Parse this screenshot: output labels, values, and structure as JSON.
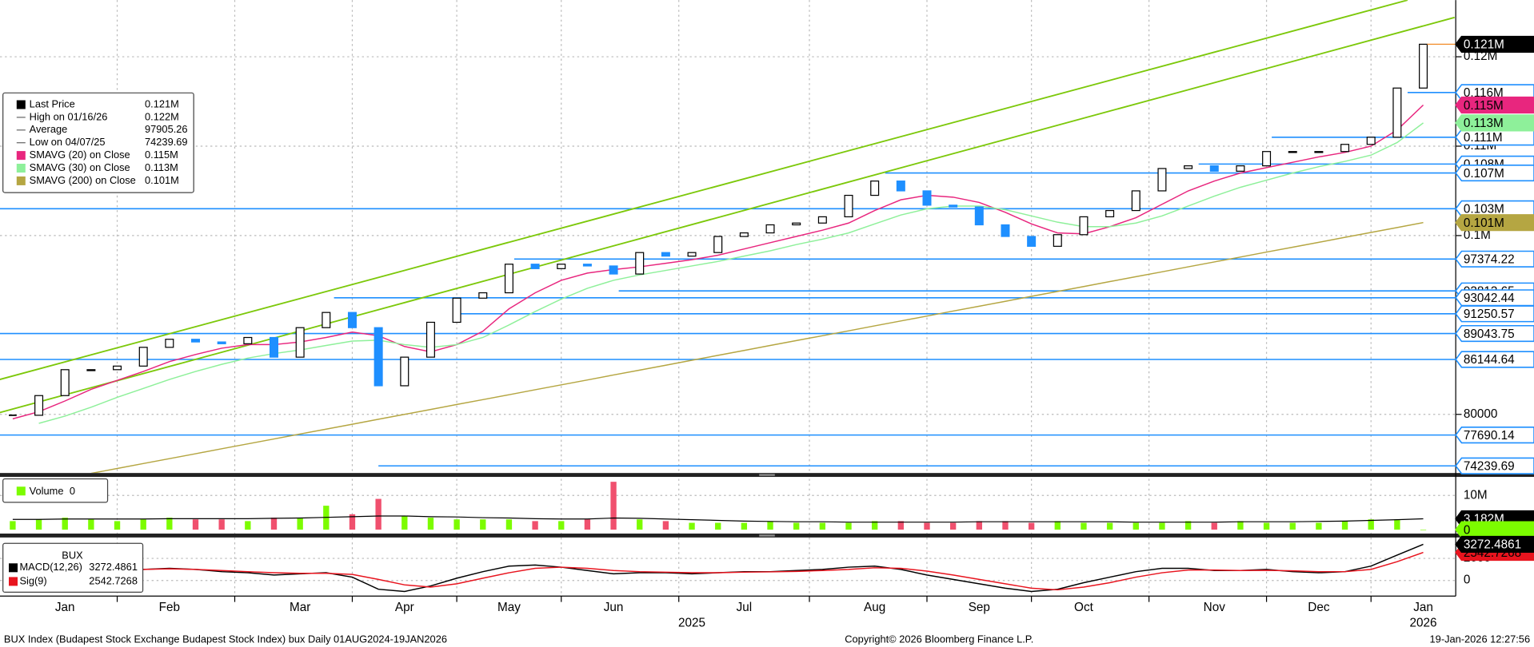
{
  "chart_data": {
    "type": "candlestick",
    "categories": [
      null,
      null,
      "Jan",
      null,
      null,
      null,
      "Feb",
      null,
      null,
      null,
      null,
      "Mar",
      null,
      null,
      null,
      "Apr",
      null,
      null,
      null,
      "May",
      null,
      null,
      null,
      "Jun",
      null,
      null,
      null,
      null,
      "Jul",
      null,
      null,
      null,
      null,
      "Aug",
      null,
      null,
      null,
      "Sep",
      null,
      null,
      null,
      "Oct",
      null,
      null,
      null,
      null,
      "Nov",
      null,
      null,
      null,
      "Dec",
      null,
      null,
      null,
      "Jan"
    ],
    "year_labels": [
      null,
      null,
      null,
      null,
      null,
      null,
      null,
      null,
      null,
      null,
      null,
      null,
      null,
      null,
      null,
      null,
      null,
      null,
      null,
      null,
      null,
      null,
      null,
      null,
      null,
      null,
      "2025",
      null,
      null,
      null,
      null,
      null,
      null,
      null,
      null,
      null,
      null,
      null,
      null,
      null,
      null,
      null,
      null,
      null,
      null,
      null,
      null,
      null,
      null,
      null,
      null,
      null,
      null,
      null,
      "2026"
    ],
    "price": {
      "name": "Last Price",
      "up_color": "#ffffff",
      "down_color": "#1e8fff",
      "values": [
        79900,
        82100,
        85000,
        85000,
        85400,
        87500,
        88400,
        88100,
        87900,
        88600,
        86400,
        89700,
        91400,
        89700,
        83200,
        86400,
        90300,
        93000,
        93600,
        96800,
        96300,
        96800,
        96600,
        95700,
        98100,
        97700,
        98100,
        99900,
        100300,
        101200,
        101400,
        102100,
        104500,
        106100,
        105000,
        103400,
        103200,
        101200,
        99900,
        98800,
        100100,
        102100,
        102800,
        105000,
        107500,
        107800,
        107200,
        107800,
        109400,
        109400,
        109400,
        110200,
        111000,
        116500,
        121400
      ]
    },
    "ylim": [
      73443,
      126339
    ],
    "yticks": [
      80000,
      {
        "value": 100000,
        "label": "0.1M"
      },
      {
        "value": 110000,
        "label": "0.11M"
      },
      {
        "value": 120000,
        "label": "0.12M"
      }
    ],
    "grid": true,
    "moving_averages": [
      {
        "name": "SMAVG (20)  on Close",
        "color": "#e8267e",
        "values": [
          79500,
          80300,
          81500,
          82800,
          83800,
          84800,
          85900,
          86700,
          87400,
          87800,
          87800,
          88100,
          88600,
          89200,
          88800,
          87600,
          87000,
          87800,
          89300,
          91800,
          93600,
          95000,
          95800,
          96200,
          96500,
          96900,
          97300,
          97800,
          98500,
          99200,
          99900,
          100600,
          101400,
          102800,
          104000,
          104500,
          104300,
          103700,
          102600,
          101300,
          100300,
          100200,
          101000,
          102000,
          103500,
          105000,
          106100,
          107000,
          107600,
          108200,
          108800,
          109300,
          110000,
          111800,
          114600
        ]
      },
      {
        "name": "SMAVG (30)  on Close",
        "color": "#8ef09a",
        "values": [
          null,
          79000,
          79800,
          80800,
          81900,
          82900,
          83900,
          84800,
          85600,
          86300,
          86800,
          87200,
          87700,
          88200,
          88300,
          87800,
          87500,
          87800,
          88600,
          90000,
          91500,
          92900,
          94100,
          95000,
          95600,
          96100,
          96600,
          97100,
          97700,
          98300,
          99000,
          99600,
          100300,
          101300,
          102300,
          103000,
          103300,
          103300,
          102900,
          102200,
          101500,
          101000,
          101000,
          101400,
          102200,
          103300,
          104400,
          105400,
          106200,
          107000,
          107700,
          108300,
          109000,
          110400,
          112600
        ]
      },
      {
        "name": "SMAVG (200)  on Close",
        "color": "#b5a642",
        "values": [
          null,
          null,
          null,
          73400,
          73950,
          74500,
          75050,
          75600,
          76150,
          76700,
          77250,
          77800,
          78350,
          78900,
          79450,
          80000,
          80550,
          81100,
          81650,
          82200,
          82750,
          83300,
          83850,
          84400,
          84950,
          85500,
          86050,
          86600,
          87150,
          87700,
          88250,
          88800,
          89350,
          89900,
          90450,
          91000,
          91550,
          92100,
          92650,
          93200,
          93750,
          94300,
          94850,
          95400,
          95950,
          96500,
          97050,
          97600,
          98150,
          98700,
          99250,
          99800,
          100350,
          100900,
          101450
        ]
      }
    ],
    "legend": [
      {
        "name": "Last Price",
        "value": 121400,
        "value_label": "0.121M",
        "color": "#000000",
        "box_fill": "#000000",
        "box_text": "#ffffff"
      },
      {
        "name": "High on 01/16/26",
        "value": 122000,
        "value_label": "0.122M"
      },
      {
        "name": "Average",
        "value": 97905.26
      },
      {
        "name": "Low on 04/07/25",
        "value": 74239.69
      },
      {
        "name": "SMAVG (20)  on Close",
        "value": 114600,
        "value_label": "0.115M",
        "color": "#e8267e",
        "box_fill": "#e8267e",
        "box_text": "#000000"
      },
      {
        "name": "SMAVG (30)  on Close",
        "value": 112600,
        "value_label": "0.113M",
        "color": "#8ef09a",
        "box_fill": "#8ef09a",
        "box_text": "#000000"
      },
      {
        "name": "SMAVG (200)  on Close",
        "value": 101450,
        "value_label": "0.101M",
        "color": "#b5a642",
        "box_fill": "#b5a642",
        "box_text": "#000000"
      }
    ],
    "trendlines": [
      {
        "x": [
          -0.5,
          53.4
        ],
        "y": [
          83900,
          126339
        ],
        "color": "#7cc80a"
      },
      {
        "x": [
          -0.5,
          55.2
        ],
        "y": [
          80200,
          124400
        ],
        "color": "#7cc80a"
      }
    ],
    "levels_color": "#1e8fff",
    "levels": [
      {
        "value": 93813.65,
        "start": 23.2
      },
      {
        "value": 116000,
        "label": "0.116M",
        "start": 53.4
      },
      {
        "value": 111000,
        "label": "0.111M",
        "start": 48.2
      },
      {
        "value": 108000,
        "label": "0.108M",
        "start": 45.4
      },
      {
        "value": 107000,
        "label": "0.107M",
        "start": 33.4
      },
      {
        "value": 103000,
        "label": "0.103M",
        "start": -0.5
      },
      {
        "value": 97374.22,
        "start": 19.2
      },
      {
        "value": 93042.44,
        "start": 12.3
      },
      {
        "value": 91250.57,
        "start": 17.0
      },
      {
        "value": 89043.75,
        "start": -0.5
      },
      {
        "value": 86144.64,
        "start": -0.5
      },
      {
        "value": 77690.14,
        "start": -0.5
      },
      {
        "value": 74239.69,
        "start": 14.0
      }
    ],
    "volume": {
      "name": "Volume",
      "up_color": "#7cfc00",
      "down_color": "#f0506e",
      "ma_color": "#000000",
      "values": [
        2500000,
        3000000,
        3500000,
        3000000,
        2500000,
        3000000,
        3500000,
        3000000,
        3000000,
        2500000,
        3500000,
        3500000,
        7000000,
        4500000,
        9000000,
        4000000,
        3500000,
        3000000,
        3000000,
        3000000,
        2500000,
        2500000,
        3000000,
        14000000,
        3000000,
        2500000,
        2000000,
        2000000,
        2000000,
        2500000,
        2000000,
        2000000,
        2000000,
        2500000,
        2500000,
        2000000,
        2000000,
        2500000,
        2500000,
        2000000,
        2500000,
        2000000,
        2000000,
        2000000,
        2000000,
        2500000,
        2000000,
        2500000,
        2000000,
        2000000,
        2000000,
        2500000,
        3000000,
        3000000,
        0
      ],
      "ma_values": [
        3000000,
        3000000,
        3100000,
        3100000,
        3100000,
        3100000,
        3200000,
        3200000,
        3200000,
        3200000,
        3300000,
        3400000,
        3600000,
        3800000,
        4000000,
        4000000,
        3800000,
        3700000,
        3500000,
        3400000,
        3200000,
        3100000,
        3100000,
        3400000,
        3300000,
        3100000,
        2900000,
        2700000,
        2500000,
        2400000,
        2300000,
        2300000,
        2200000,
        2200000,
        2200000,
        2200000,
        2200000,
        2300000,
        2300000,
        2300000,
        2300000,
        2300000,
        2300000,
        2200000,
        2200000,
        2200000,
        2200000,
        2300000,
        2300000,
        2300000,
        2400000,
        2500000,
        2700000,
        2900000,
        3182000
      ],
      "ma_label": "3.182M",
      "ylim": [
        -860000,
        15430000
      ],
      "yticks": [
        {
          "value": 10000000,
          "label": "10M"
        }
      ]
    },
    "macd": {
      "title": "BUX",
      "ylim": [
        -1416,
        3717
      ],
      "yticks": [
        0,
        2000
      ],
      "series": [
        {
          "name": "MACD(12,26)",
          "color": "#000000",
          "values": [
            1300,
            1200,
            1100,
            1000,
            900,
            1000,
            1100,
            1000,
            800,
            700,
            500,
            600,
            700,
            300,
            -800,
            -1000,
            -500,
            200,
            800,
            1300,
            1400,
            1200,
            900,
            600,
            700,
            700,
            600,
            700,
            800,
            800,
            900,
            1000,
            1200,
            1300,
            1000,
            500,
            100,
            -300,
            -700,
            -1000,
            -800,
            -200,
            300,
            800,
            1100,
            1100,
            900,
            900,
            1000,
            800,
            700,
            800,
            1300,
            2300,
            3272.4861
          ]
        },
        {
          "name": "Sig(9)",
          "color": "#e8141e",
          "values": [
            1100,
            1150,
            1150,
            1100,
            1000,
            1000,
            1050,
            1000,
            900,
            800,
            700,
            650,
            650,
            550,
            100,
            -400,
            -600,
            -300,
            200,
            700,
            1100,
            1200,
            1100,
            900,
            800,
            750,
            700,
            700,
            750,
            780,
            820,
            900,
            1000,
            1150,
            1100,
            850,
            500,
            100,
            -300,
            -700,
            -850,
            -600,
            -200,
            300,
            700,
            950,
            950,
            900,
            920,
            880,
            800,
            800,
            1000,
            1700,
            2542.7268
          ]
        }
      ]
    },
    "footer": {
      "left": "BUX Index (Budapest Stock Exchange Budapest Stock Index) bux Daily 01AUG2024-19JAN2026",
      "center": "Copyright© 2026 Bloomberg Finance L.P.",
      "right": "19-Jan-2026 12:27:56"
    }
  }
}
